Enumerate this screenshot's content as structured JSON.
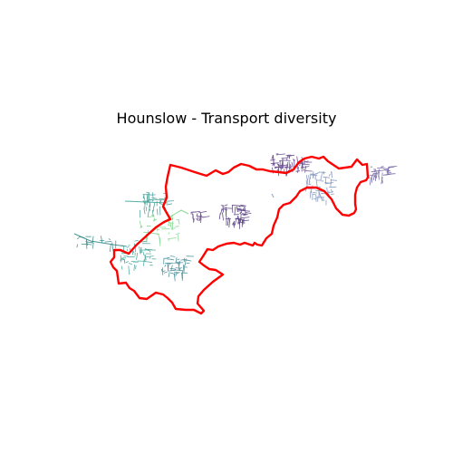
{
  "title": "Hounslow - Transport diversity",
  "boundary": {
    "color": "#ff0000"
  },
  "network_clusters": [
    {
      "id": "north-east-hub",
      "color": "#4b2a7b"
    },
    {
      "id": "east-river-cluster",
      "color": "#6f86b4"
    },
    {
      "id": "east-edge-cluster",
      "color": "#5b4d96"
    },
    {
      "id": "central-cluster",
      "color": "#3b1f6e"
    },
    {
      "id": "small-central-cluster",
      "color": "#44206e"
    },
    {
      "id": "north-west-cluster",
      "color": "#2f8f8a"
    },
    {
      "id": "west-green-cluster",
      "color": "#6ad07b"
    },
    {
      "id": "west-teal-cluster",
      "color": "#2b9b8e"
    },
    {
      "id": "south-west-cluster",
      "color": "#2c7e8c"
    },
    {
      "id": "far-west-branch",
      "color": "#1f7a7a"
    }
  ]
}
